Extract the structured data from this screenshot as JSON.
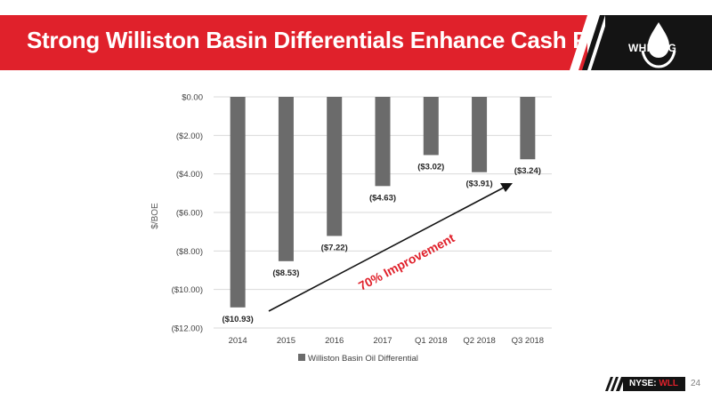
{
  "header": {
    "title": "Strong Williston Basin Differentials Enhance Cash Flow",
    "brand": "WHITING",
    "accent_color": "#e0212b",
    "dark_color": "#141414"
  },
  "footer": {
    "ticker_prefix": "NYSE:",
    "ticker_symbol": "WLL",
    "page_number": "24"
  },
  "chart_data": {
    "type": "bar",
    "categories": [
      "2014",
      "2015",
      "2016",
      "2017",
      "Q1 2018",
      "Q2 2018",
      "Q3 2018"
    ],
    "series": [
      {
        "name": "Williston Basin Oil Differential",
        "values": [
          -10.93,
          -8.53,
          -7.22,
          -4.63,
          -3.02,
          -3.91,
          -3.24
        ],
        "labels": [
          "($10.93)",
          "($8.53)",
          "($7.22)",
          "($4.63)",
          "($3.02)",
          "($3.91)",
          "($3.24)"
        ],
        "color": "#6b6b6b"
      }
    ],
    "ylabel": "$/BOE",
    "ylim": [
      -12,
      0
    ],
    "yticks": [
      0,
      -2,
      -4,
      -6,
      -8,
      -10,
      -12
    ],
    "ytick_labels": [
      "$0.00",
      "($2.00)",
      "($4.00)",
      "($6.00)",
      "($8.00)",
      "($10.00)",
      "($12.00)"
    ],
    "grid": true,
    "legend_position": "bottom",
    "annotation": {
      "text": "70% Improvement",
      "color": "#e0212b",
      "arrow_color": "#141414"
    }
  }
}
